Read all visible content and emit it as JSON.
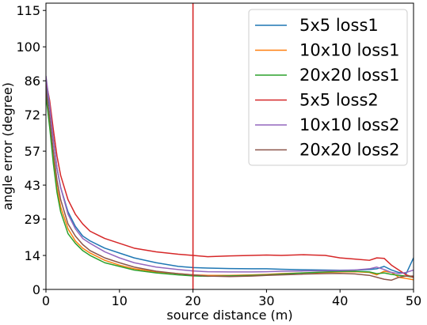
{
  "chart_data": {
    "type": "line",
    "title": "",
    "xlabel": "source distance (m)",
    "ylabel": "angle error (degree)",
    "xlim": [
      0,
      50
    ],
    "ylim": [
      0,
      118
    ],
    "xticks": [
      0,
      10,
      20,
      30,
      40,
      50
    ],
    "xtick_labels": [
      "0",
      "10",
      "20",
      "30",
      "40",
      "50"
    ],
    "yticks": [
      0,
      14,
      29,
      43,
      57,
      72,
      86,
      100,
      115
    ],
    "ytick_labels": [
      "0",
      "14",
      "29",
      "43",
      "57",
      "72",
      "86",
      "100",
      "115"
    ],
    "grid": false,
    "legend_position": "top-right",
    "vline": {
      "x": 20,
      "color": "#d62728"
    },
    "x": [
      0,
      0.5,
      1,
      1.5,
      2,
      3,
      4,
      5,
      6,
      8,
      10,
      12,
      15,
      18,
      20,
      22,
      25,
      28,
      30,
      32,
      35,
      38,
      40,
      42,
      44,
      45,
      46,
      47,
      48,
      49,
      50
    ],
    "series": [
      {
        "name": "5x5 loss1",
        "color": "#1f77b4",
        "values": [
          85,
          75,
          62,
          50,
          42,
          32,
          26,
          22,
          20,
          17,
          15,
          13,
          11,
          9.5,
          9,
          8.8,
          8.6,
          8.5,
          8.5,
          8.3,
          8.1,
          8,
          7.9,
          8,
          8.2,
          8.5,
          9.5,
          8,
          7,
          6.5,
          13
        ]
      },
      {
        "name": "10x10 loss1",
        "color": "#ff7f0e",
        "values": [
          82,
          70,
          55,
          42,
          34,
          25,
          20,
          17,
          15,
          12,
          10,
          8.5,
          7.2,
          6.5,
          6,
          5.8,
          5.8,
          6,
          6.2,
          6.5,
          6.8,
          7,
          7.2,
          7.3,
          7,
          6,
          7.5,
          7,
          5,
          4.5,
          4
        ]
      },
      {
        "name": "20x20 loss1",
        "color": "#2ca02c",
        "values": [
          80,
          67,
          52,
          40,
          32,
          23,
          19,
          16,
          14,
          11,
          9.5,
          8,
          6.8,
          6,
          5.6,
          5.4,
          5.6,
          5.8,
          6,
          6.3,
          6.8,
          7.2,
          7.4,
          7.5,
          7.2,
          6.5,
          6.8,
          6.2,
          5.8,
          5.5,
          5
        ]
      },
      {
        "name": "5x5 loss2",
        "color": "#d62728",
        "values": [
          86,
          78,
          66,
          55,
          47,
          37,
          31,
          27,
          24,
          21,
          19,
          17,
          15.5,
          14.5,
          14,
          13.5,
          13.8,
          14,
          14.2,
          14,
          14.3,
          14,
          13,
          12.5,
          12,
          13,
          12.8,
          10,
          8,
          6,
          5
        ]
      },
      {
        "name": "10x10 loss2",
        "color": "#9467bd",
        "values": [
          88,
          76,
          62,
          50,
          42,
          31,
          25,
          21,
          19,
          15.5,
          13,
          11,
          9.2,
          8.2,
          7.6,
          7.3,
          7.2,
          7.2,
          7.3,
          7.5,
          7.6,
          7.7,
          7.8,
          8,
          8.5,
          9.2,
          8.2,
          7,
          6.5,
          7,
          8
        ]
      },
      {
        "name": "20x20 loss2",
        "color": "#8c564b",
        "values": [
          83,
          71,
          57,
          45,
          37,
          27,
          22,
          18.5,
          16,
          13,
          11,
          9.2,
          7.5,
          6.5,
          6,
          5.5,
          5.3,
          5.5,
          5.8,
          6,
          6.3,
          6.5,
          6.6,
          6.4,
          5.8,
          5,
          4.2,
          3.8,
          5,
          5.5,
          5.5
        ]
      }
    ]
  }
}
